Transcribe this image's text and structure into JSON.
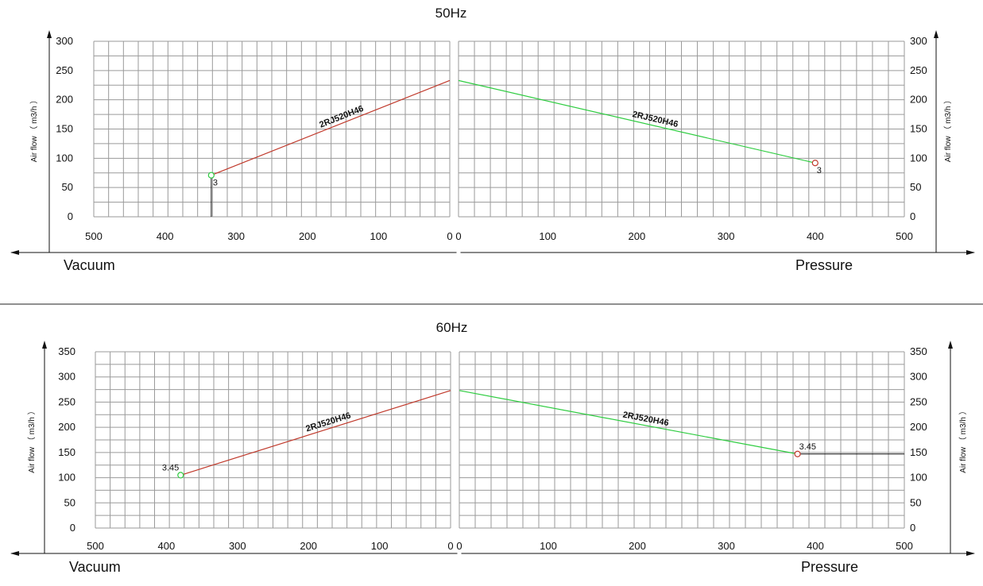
{
  "chart_data": [
    {
      "type": "line",
      "title": "50Hz",
      "ylabel": "Air flow （ m3/h ）",
      "ylim": [
        0,
        300
      ],
      "yticks": [
        "0",
        "50",
        "100",
        "150",
        "200",
        "250",
        "300"
      ],
      "vacuum": {
        "side_label": "Vacuum",
        "xlim": [
          0,
          500
        ],
        "xticks": [
          "500",
          "400",
          "300",
          "200",
          "100",
          "0"
        ],
        "series": [
          {
            "name": "2RJ520H46",
            "x": [
              0,
              335
            ],
            "y": [
              233,
              71
            ],
            "color": "#c0392b"
          }
        ],
        "end_marker": {
          "x": 335,
          "y": 71,
          "label": "3"
        }
      },
      "pressure": {
        "side_label": "Pressure",
        "xlim": [
          0,
          500
        ],
        "xticks": [
          "0",
          "100",
          "200",
          "300",
          "400",
          "500"
        ],
        "series": [
          {
            "name": "2RJ520H46",
            "x": [
              0,
              400
            ],
            "y": [
              233,
              92
            ],
            "color": "#2ecc40"
          }
        ],
        "end_marker": {
          "x": 400,
          "y": 92,
          "label": "3"
        }
      }
    },
    {
      "type": "line",
      "title": "60Hz",
      "ylabel": "Air flow （ m3/h ）",
      "ylim": [
        0,
        350
      ],
      "yticks": [
        "0",
        "50",
        "100",
        "150",
        "200",
        "250",
        "300",
        "350"
      ],
      "vacuum": {
        "side_label": "Vacuum",
        "xlim": [
          0,
          500
        ],
        "xticks": [
          "500",
          "400",
          "300",
          "200",
          "100",
          "0"
        ],
        "series": [
          {
            "name": "2RJ520H46",
            "x": [
              0,
              380
            ],
            "y": [
              273,
              105
            ],
            "color": "#c0392b"
          }
        ],
        "end_marker": {
          "x": 380,
          "y": 105,
          "label": "3.45"
        }
      },
      "pressure": {
        "side_label": "Pressure",
        "xlim": [
          0,
          500
        ],
        "xticks": [
          "0",
          "100",
          "200",
          "300",
          "400",
          "500"
        ],
        "series": [
          {
            "name": "2RJ520H46",
            "x": [
              0,
              380
            ],
            "y": [
              273,
              147
            ],
            "color": "#2ecc40"
          }
        ],
        "end_marker": {
          "x": 380,
          "y": 147,
          "label": "3.45"
        }
      }
    }
  ]
}
